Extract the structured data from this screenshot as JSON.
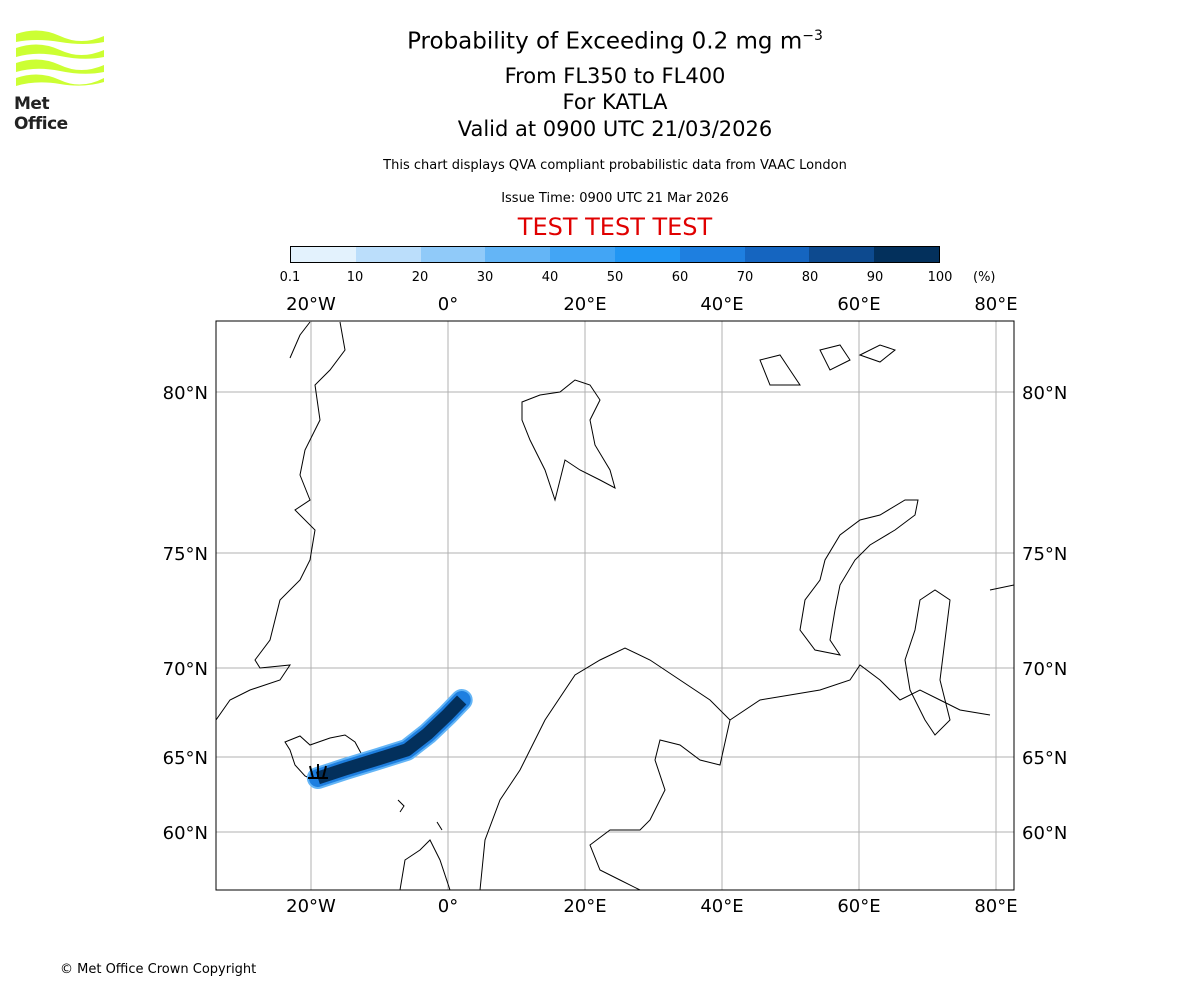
{
  "logo": {
    "text": "Met Office",
    "color": "#ccff33"
  },
  "title": {
    "main": "Probability of Exceeding 0.2 mg m",
    "main_sup": "−3",
    "levels": "From FL350 to FL400",
    "volcano": "For KATLA",
    "valid": "Valid at 0900 UTC 21/03/2026",
    "note": "This chart displays QVA compliant probabilistic data from VAAC London",
    "issue": "Issue Time: 0900 UTC 21 Mar 2026",
    "test_banner": "TEST TEST TEST"
  },
  "colorbar": {
    "ticks": [
      "0.1",
      "10",
      "20",
      "30",
      "40",
      "50",
      "60",
      "70",
      "80",
      "90",
      "100"
    ],
    "unit": "(%)",
    "colors": [
      "#e3f2fd",
      "#bbdefb",
      "#90caf9",
      "#64b5f6",
      "#42a5f5",
      "#2196f3",
      "#1e7fe0",
      "#1565c0",
      "#0d4a8f",
      "#03305c"
    ]
  },
  "chart_data": {
    "type": "map",
    "lon_ticks": [
      {
        "v": -20,
        "label": "20°W"
      },
      {
        "v": 0,
        "label": "0°"
      },
      {
        "v": 20,
        "label": "20°E"
      },
      {
        "v": 40,
        "label": "40°E"
      },
      {
        "v": 60,
        "label": "60°E"
      },
      {
        "v": 80,
        "label": "80°E"
      }
    ],
    "lat_ticks": [
      {
        "v": 80,
        "label": "80°N"
      },
      {
        "v": 75,
        "label": "75°N"
      },
      {
        "v": 70,
        "label": "70°N"
      },
      {
        "v": 65,
        "label": "65°N"
      },
      {
        "v": 60,
        "label": "60°N"
      }
    ],
    "plume": {
      "probability_range": [
        90,
        100
      ],
      "centerline": [
        [
          -19,
          63.6
        ],
        [
          -15,
          64.2
        ],
        [
          -10,
          64.9
        ],
        [
          -6,
          65.4
        ],
        [
          -3,
          66.3
        ],
        [
          0,
          67.4
        ],
        [
          2,
          68.2
        ]
      ]
    },
    "grid": true
  },
  "footer": {
    "copyright": "© Met Office Crown Copyright"
  }
}
